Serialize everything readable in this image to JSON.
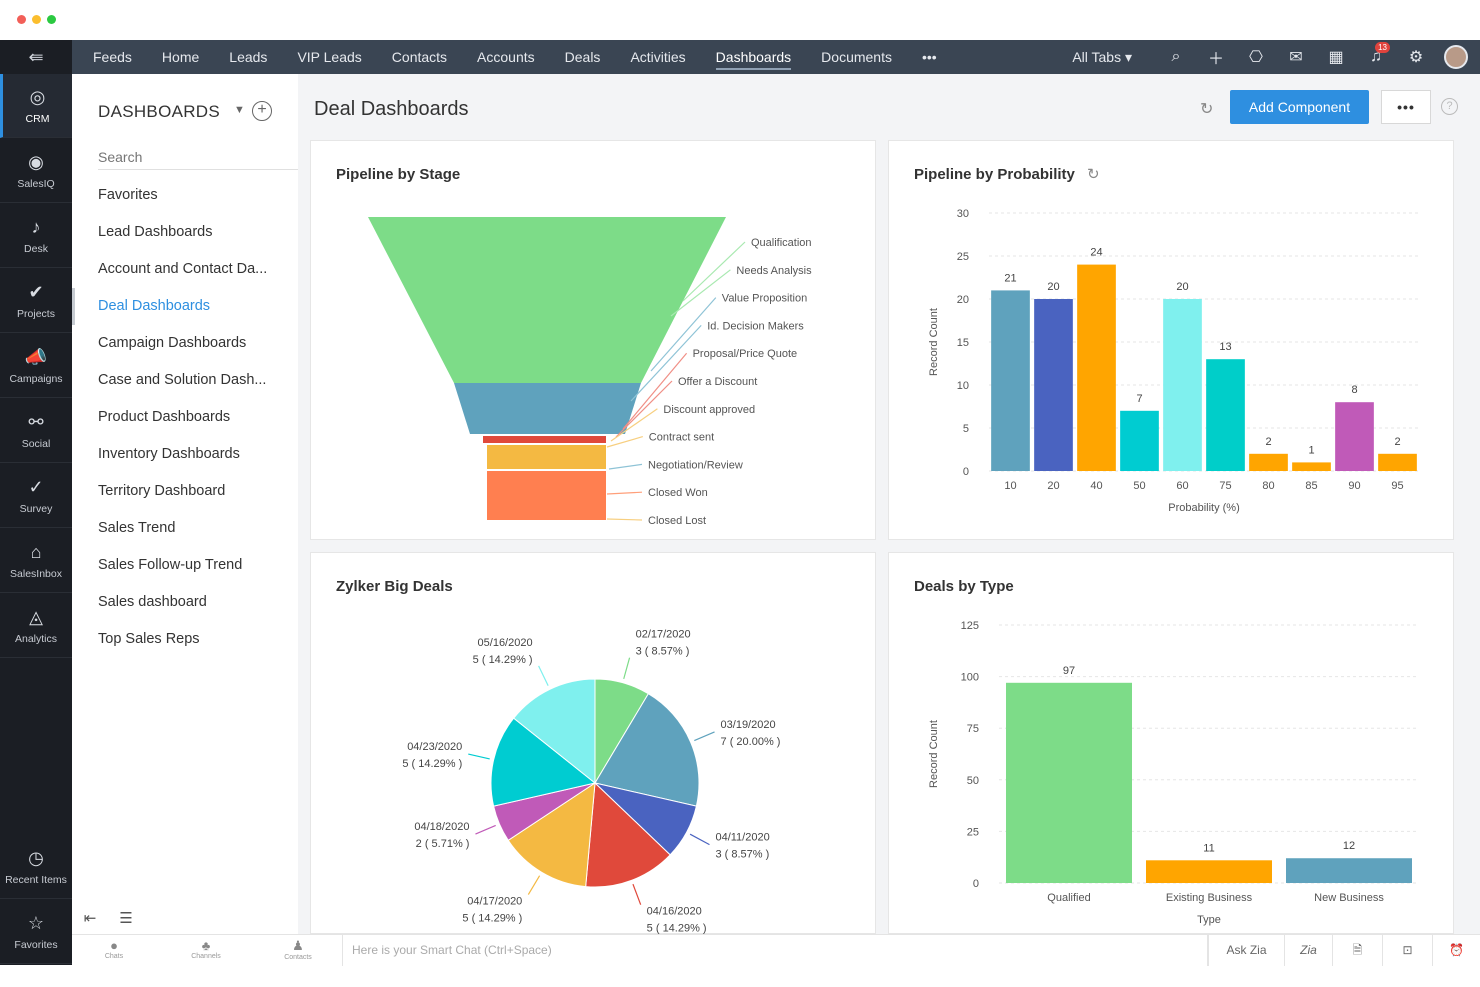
{
  "window": {
    "dot_colors": [
      "#f25f58",
      "#fbbe2e",
      "#2bc941"
    ]
  },
  "rail": {
    "top_icon": "menu-icon",
    "items": [
      {
        "label": "CRM",
        "icon": "crm-icon",
        "active": true
      },
      {
        "label": "SalesIQ",
        "icon": "salesiq-icon"
      },
      {
        "label": "Desk",
        "icon": "desk-icon"
      },
      {
        "label": "Projects",
        "icon": "projects-icon"
      },
      {
        "label": "Campaigns",
        "icon": "campaigns-icon"
      },
      {
        "label": "Social",
        "icon": "social-icon"
      },
      {
        "label": "Survey",
        "icon": "survey-icon"
      },
      {
        "label": "SalesInbox",
        "icon": "salesinbox-icon"
      },
      {
        "label": "Analytics",
        "icon": "analytics-icon"
      }
    ],
    "bottom_items": [
      {
        "label": "Recent Items",
        "icon": "clock-icon"
      },
      {
        "label": "Favorites",
        "icon": "star-icon"
      }
    ]
  },
  "nav": {
    "items": [
      "Feeds",
      "Home",
      "Leads",
      "VIP Leads",
      "Contacts",
      "Accounts",
      "Deals",
      "Activities",
      "Dashboards",
      "Documents",
      "•••"
    ],
    "active": "Dashboards",
    "all_tabs": "All Tabs ▾",
    "notification_count": "13"
  },
  "sidebar": {
    "title": "DASHBOARDS",
    "search_placeholder": "Search",
    "items": [
      "Favorites",
      "Lead Dashboards",
      "Account and Contact Da...",
      "Deal Dashboards",
      "Campaign Dashboards",
      "Case and Solution Dash...",
      "Product Dashboards",
      "Inventory Dashboards",
      "Territory Dashboard",
      "Sales Trend",
      "Sales Follow-up Trend",
      "Sales dashboard",
      "Top Sales Reps"
    ],
    "active": "Deal Dashboards"
  },
  "main": {
    "title": "Deal Dashboards",
    "add_component": "Add Component",
    "more": "•••",
    "help": "?"
  },
  "statusbar": {
    "icons": [
      {
        "label": "Chats",
        "icon": "chat-icon"
      },
      {
        "label": "Channels",
        "icon": "channels-icon"
      },
      {
        "label": "Contacts",
        "icon": "contacts-icon"
      }
    ],
    "smart_chat_placeholder": "Here is your Smart Chat (Ctrl+Space)",
    "ask_zia": "Ask Zia",
    "zia_icon_text": "Zia"
  },
  "chart_data": [
    {
      "type": "funnel",
      "title": "Pipeline by Stage",
      "stages": [
        "Qualification",
        "Needs Analysis",
        "Value Proposition",
        "Id. Decision Makers",
        "Proposal/Price Quote",
        "Offer a Discount",
        "Discount approved",
        "Contract sent",
        "Negotiation/Review",
        "Closed Won",
        "Closed Lost"
      ],
      "colors": [
        "#7ddc88",
        "#5fa2bd",
        "#e0493b",
        "#f4b942",
        "#ff7f50"
      ]
    },
    {
      "type": "bar",
      "title": "Pipeline by Probability",
      "xlabel": "Probability (%)",
      "ylabel": "Record Count",
      "ylim": [
        0,
        30
      ],
      "yticks": [
        0,
        5,
        10,
        15,
        20,
        25,
        30
      ],
      "categories": [
        "10",
        "20",
        "40",
        "50",
        "60",
        "75",
        "80",
        "85",
        "90",
        "95"
      ],
      "values": [
        21,
        20,
        24,
        7,
        20,
        13,
        2,
        1,
        8,
        2
      ],
      "colors": [
        "#5fa2bd",
        "#4a63c0",
        "#ffa500",
        "#00ccd1",
        "#7ff0ee",
        "#00cec9",
        "#ffa500",
        "#ffa500",
        "#c05ab8",
        "#ffa500"
      ]
    },
    {
      "type": "pie",
      "title": "Zylker Big Deals",
      "slices": [
        {
          "label": "02/17/2020",
          "value": 3,
          "pct": "3 ( 8.57% )",
          "color": "#7ddc88"
        },
        {
          "label": "03/19/2020",
          "value": 7,
          "pct": "7 ( 20.00% )",
          "color": "#5fa2bd"
        },
        {
          "label": "04/11/2020",
          "value": 3,
          "pct": "3 ( 8.57% )",
          "color": "#4a63c0"
        },
        {
          "label": "04/16/2020",
          "value": 5,
          "pct": "5 ( 14.29% )",
          "color": "#e0493b"
        },
        {
          "label": "04/17/2020",
          "value": 5,
          "pct": "5 ( 14.29% )",
          "color": "#f4b942"
        },
        {
          "label": "04/18/2020",
          "value": 2,
          "pct": "2 ( 5.71% )",
          "color": "#c05ab8"
        },
        {
          "label": "04/23/2020",
          "value": 5,
          "pct": "5 ( 14.29% )",
          "color": "#00ccd1"
        },
        {
          "label": "05/16/2020",
          "value": 5,
          "pct": "5 ( 14.29% )",
          "color": "#7ff0ee"
        }
      ]
    },
    {
      "type": "bar",
      "title": "Deals by Type",
      "xlabel": "Type",
      "ylabel": "Record Count",
      "ylim": [
        0,
        125
      ],
      "yticks": [
        0,
        25,
        50,
        75,
        100,
        125
      ],
      "categories": [
        "Qualified",
        "Existing Business",
        "New Business"
      ],
      "values": [
        97,
        11,
        12
      ],
      "colors": [
        "#7ddc88",
        "#ffa500",
        "#5fa2bd"
      ]
    }
  ]
}
